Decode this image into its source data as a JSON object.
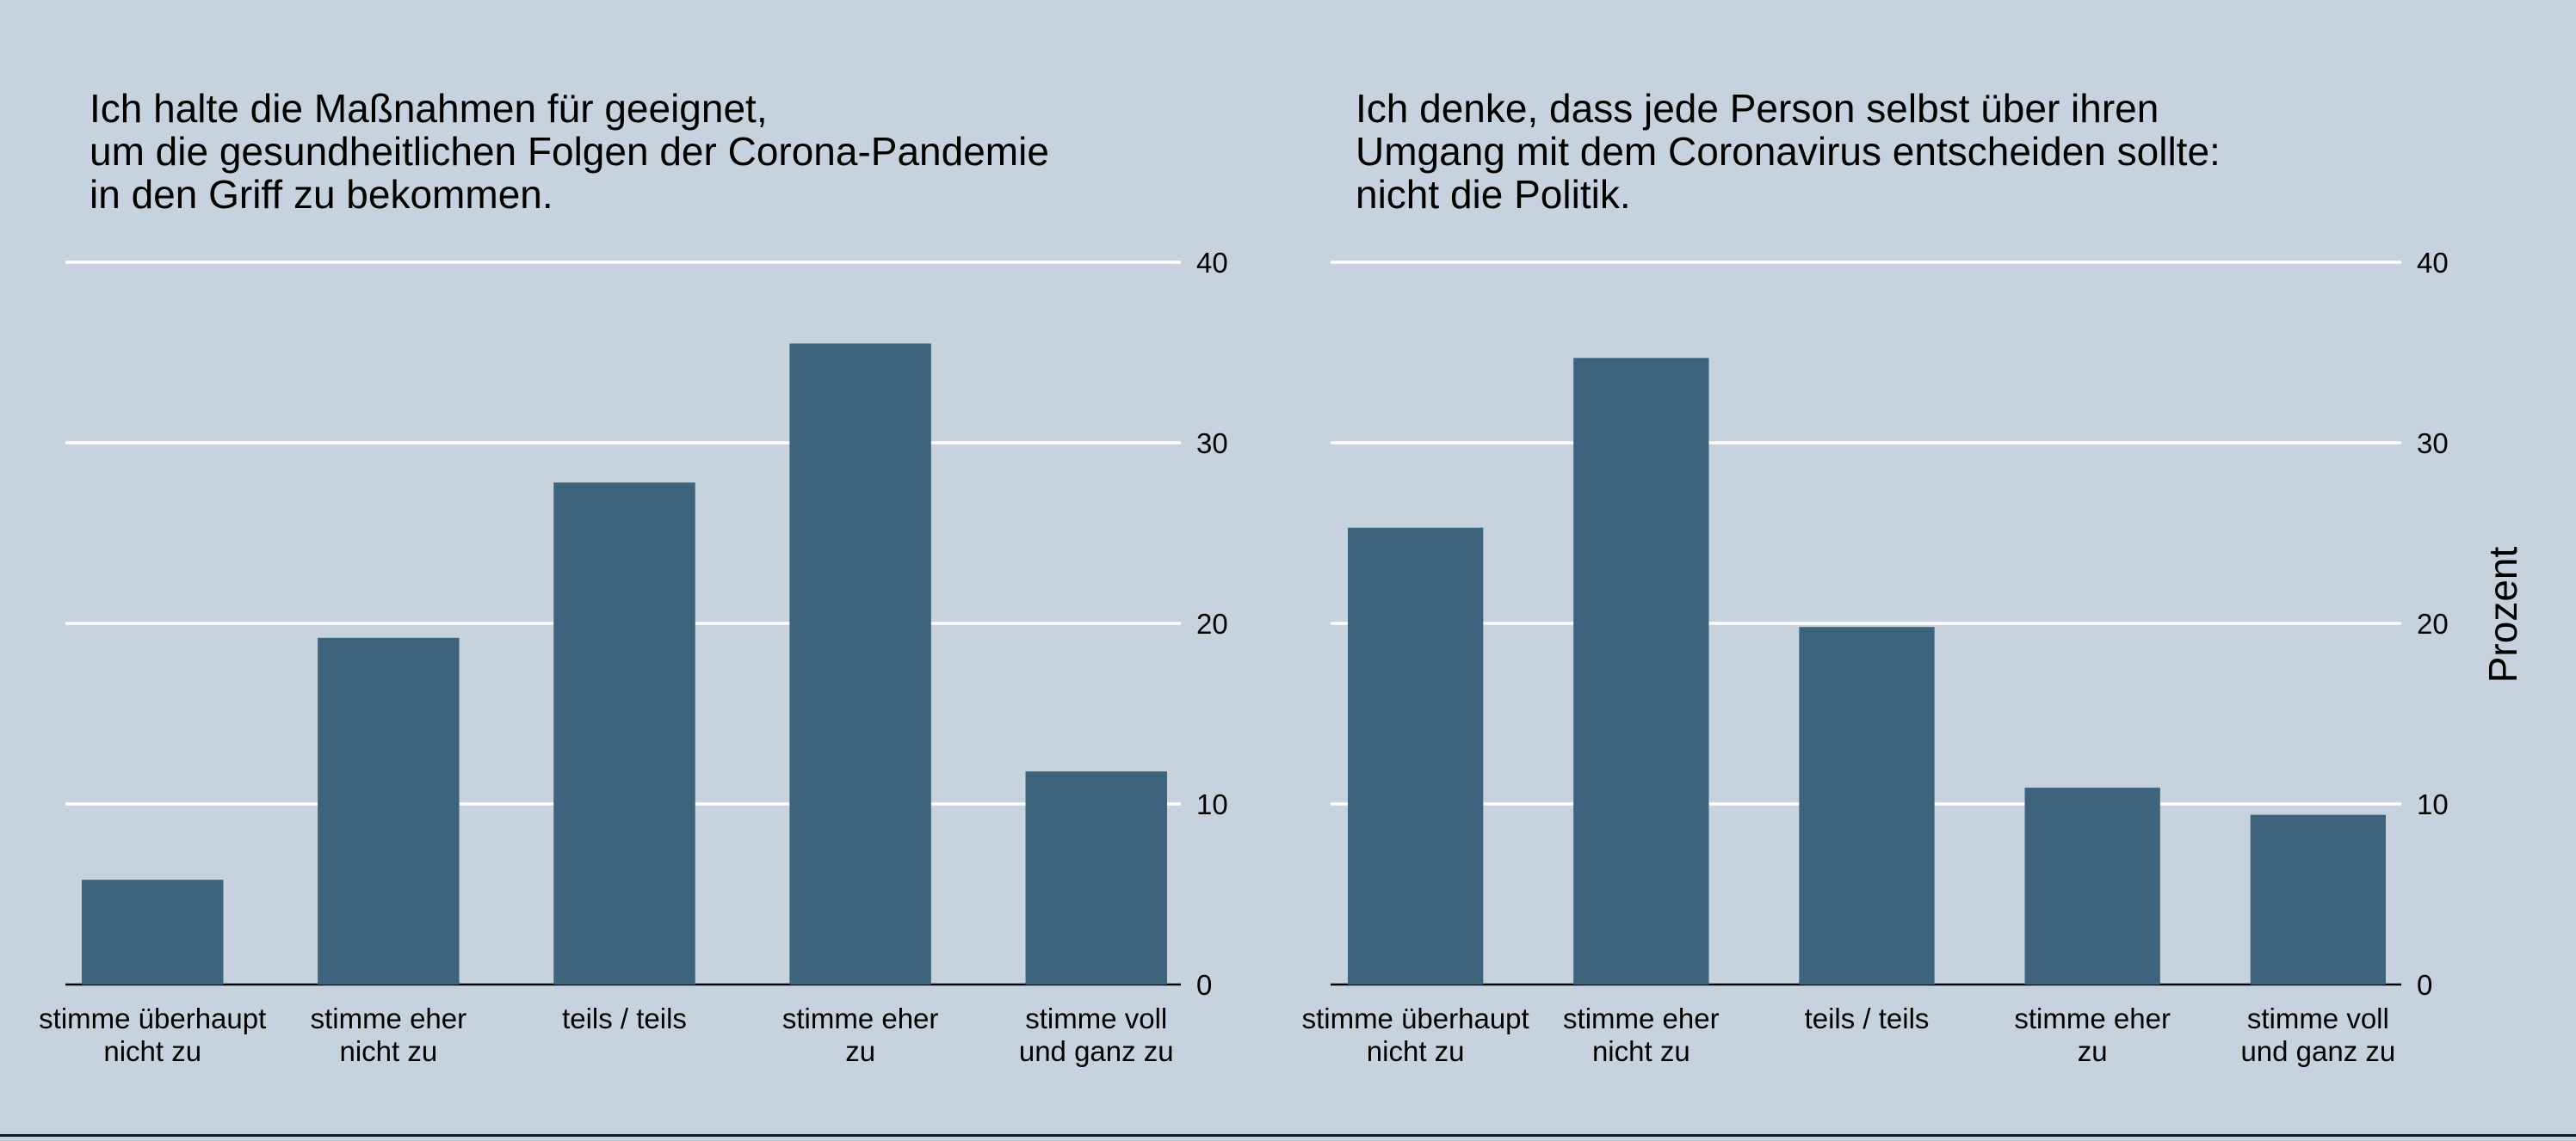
{
  "chart_data": [
    {
      "type": "bar",
      "title_lines": [
        "Ich halte die Maßnahmen für geeignet,",
        "um die gesundheitlichen Folgen der Corona-Pandemie",
        "in den Griff zu bekommen."
      ],
      "categories": [
        [
          "stimme überhaupt",
          "nicht zu"
        ],
        [
          "stimme eher",
          "nicht zu"
        ],
        [
          "teils / teils"
        ],
        [
          "stimme eher",
          "zu"
        ],
        [
          "stimme voll",
          "und ganz zu"
        ]
      ],
      "values": [
        5.8,
        19.2,
        27.8,
        35.5,
        11.8
      ],
      "ylim": [
        0,
        40
      ],
      "yticks": [
        "0",
        "10",
        "20",
        "30",
        "40"
      ],
      "ylabel": "",
      "grid": true,
      "bar_color": "#3e637d"
    },
    {
      "type": "bar",
      "title_lines": [
        "Ich denke, dass jede Person selbst über ihren",
        "Umgang mit dem Coronavirus entscheiden sollte:",
        "nicht die Politik."
      ],
      "categories": [
        [
          "stimme überhaupt",
          "nicht zu"
        ],
        [
          "stimme eher",
          "nicht zu"
        ],
        [
          "teils / teils"
        ],
        [
          "stimme eher",
          "zu"
        ],
        [
          "stimme voll",
          "und ganz zu"
        ]
      ],
      "values": [
        25.3,
        34.7,
        19.8,
        10.9,
        9.4
      ],
      "ylim": [
        0,
        40
      ],
      "yticks": [
        "0",
        "10",
        "20",
        "30",
        "40"
      ],
      "ylabel": "Prozent",
      "grid": true,
      "bar_color": "#3e637d"
    }
  ],
  "colors": {
    "background": "#c6d3df",
    "bar": "#3e637d",
    "grid": "#ffffff",
    "text": "#000000"
  }
}
